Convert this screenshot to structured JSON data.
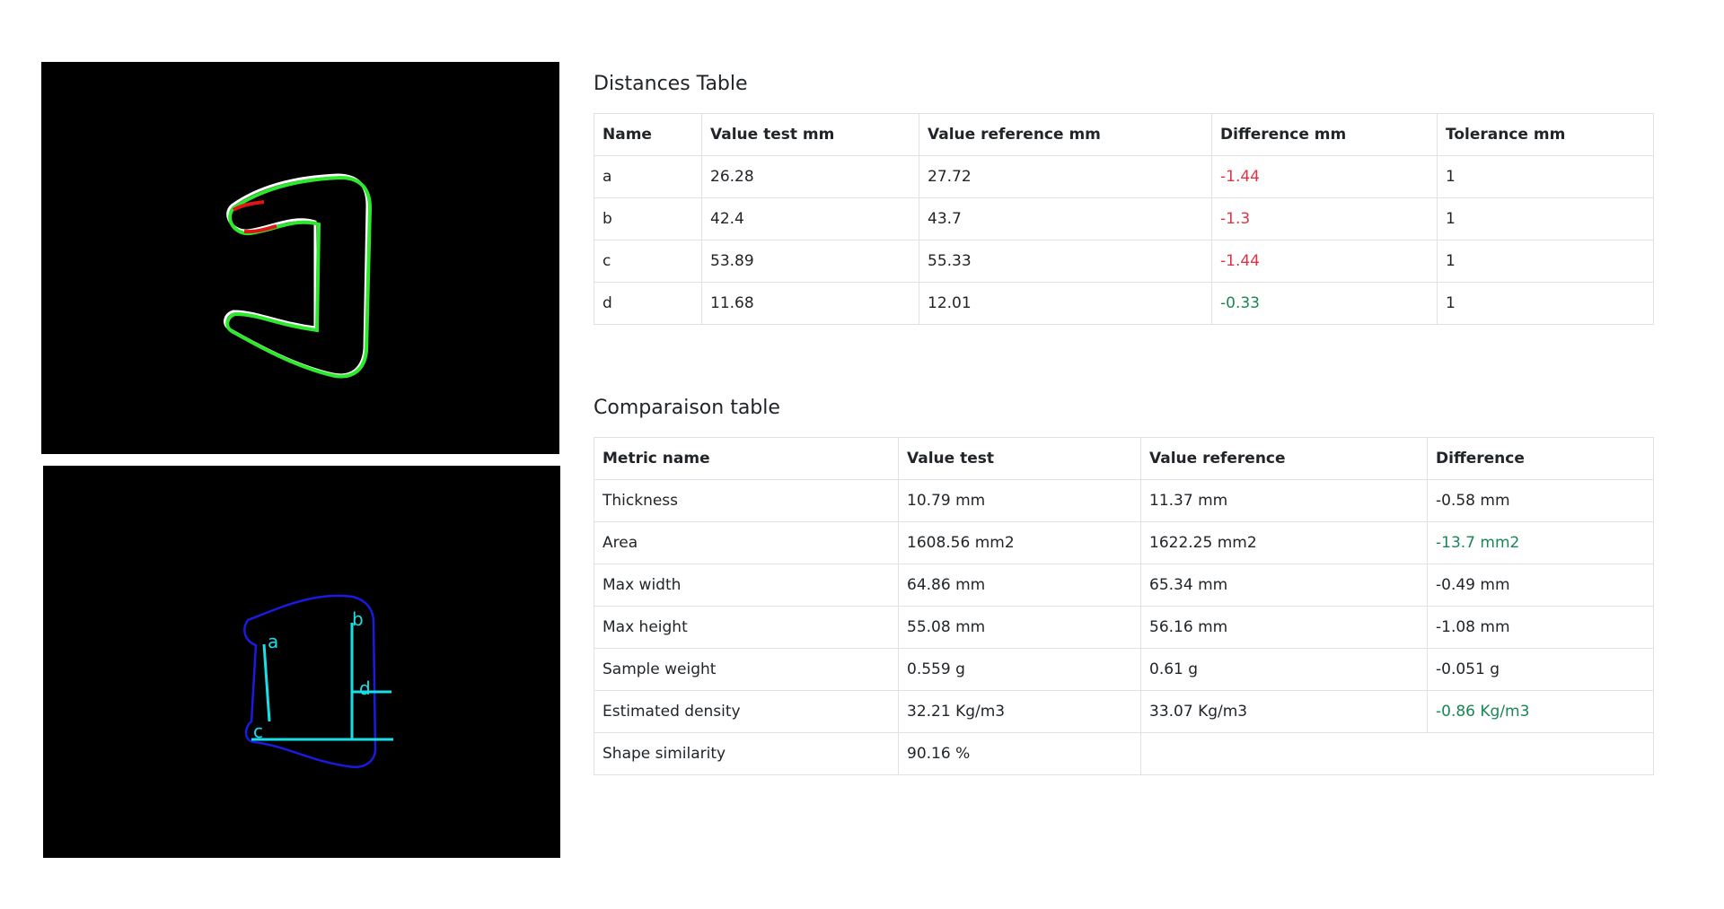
{
  "images": {
    "overlay": {
      "alt": "contour overlay"
    },
    "measurements": {
      "alt": "measurement lines",
      "labels": [
        "a",
        "b",
        "c",
        "d"
      ]
    }
  },
  "distances_table": {
    "title": "Distances Table",
    "headers": [
      "Name",
      "Value test mm",
      "Value reference mm",
      "Difference mm",
      "Tolerance mm"
    ],
    "rows": [
      {
        "name": "a",
        "test": "26.28",
        "reference": "27.72",
        "difference": "-1.44",
        "tolerance": "1",
        "status": "out"
      },
      {
        "name": "b",
        "test": "42.4",
        "reference": "43.7",
        "difference": "-1.3",
        "tolerance": "1",
        "status": "out"
      },
      {
        "name": "c",
        "test": "53.89",
        "reference": "55.33",
        "difference": "-1.44",
        "tolerance": "1",
        "status": "out"
      },
      {
        "name": "d",
        "test": "11.68",
        "reference": "12.01",
        "difference": "-0.33",
        "tolerance": "1",
        "status": "in"
      }
    ]
  },
  "comparison_table": {
    "title": "Comparaison table",
    "headers": [
      "Metric name",
      "Value test",
      "Value reference",
      "Difference"
    ],
    "rows": [
      {
        "metric": "Thickness",
        "test": "10.79 mm",
        "reference": "11.37 mm",
        "difference": "-0.58 mm",
        "status": "neutral"
      },
      {
        "metric": "Area",
        "test": "1608.56 mm2",
        "reference": "1622.25 mm2",
        "difference": "-13.7 mm2",
        "status": "good"
      },
      {
        "metric": "Max width",
        "test": "64.86 mm",
        "reference": "65.34 mm",
        "difference": "-0.49 mm",
        "status": "neutral"
      },
      {
        "metric": "Max height",
        "test": "55.08 mm",
        "reference": "56.16 mm",
        "difference": "-1.08 mm",
        "status": "neutral"
      },
      {
        "metric": "Sample weight",
        "test": "0.559 g",
        "reference": "0.61 g",
        "difference": "-0.051 g",
        "status": "neutral"
      },
      {
        "metric": "Estimated density",
        "test": "32.21 Kg/m3",
        "reference": "33.07 Kg/m3",
        "difference": "-0.86 Kg/m3",
        "status": "good"
      },
      {
        "metric": "Shape similarity",
        "test": "90.16 %",
        "reference": "",
        "difference": "",
        "status": "neutral",
        "merged": true
      }
    ]
  },
  "colors": {
    "out_of_tolerance": "#dc3545",
    "within_tolerance": "#198754",
    "contour_test": "#2ee82e",
    "contour_reference": "#ffffff",
    "contour_deviation": "#e01515",
    "contour_outline": "#1a1ae0",
    "measure_line": "#19e0e8"
  }
}
